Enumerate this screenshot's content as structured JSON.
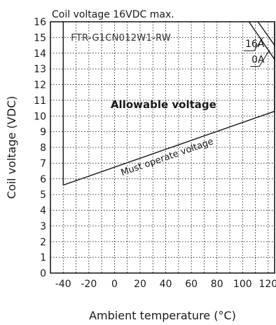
{
  "chart_data": {
    "type": "line",
    "title": "Coil voltage 16VDC max.",
    "model": "FTR-G1CN012W1-RW",
    "xlabel": "Ambient temperature (°C)",
    "ylabel": "Coil voltage (VDC)",
    "xlim": [
      -50,
      125
    ],
    "ylim": [
      0,
      16
    ],
    "x_ticks": [
      "-40",
      "-20",
      "0",
      "20",
      "40",
      "60",
      "80",
      "100",
      "120"
    ],
    "x_tick_values": [
      -40,
      -20,
      0,
      20,
      40,
      60,
      80,
      100,
      120
    ],
    "y_ticks": [
      "0",
      "1",
      "2",
      "3",
      "4",
      "5",
      "6",
      "7",
      "8",
      "9",
      "10",
      "11",
      "12",
      "13",
      "14",
      "15",
      "16"
    ],
    "y_tick_values": [
      0,
      1,
      2,
      3,
      4,
      5,
      6,
      7,
      8,
      9,
      10,
      11,
      12,
      13,
      14,
      15,
      16
    ],
    "grid": true,
    "region_label": "Allowable voltage",
    "series": [
      {
        "name": "Must operate voltage",
        "points": [
          [
            -40,
            5.6
          ],
          [
            125,
            10.3
          ]
        ]
      },
      {
        "name": "16A",
        "points": [
          [
            105,
            16
          ],
          [
            125,
            13.6
          ]
        ]
      },
      {
        "name": "0A",
        "points": [
          [
            112,
            16
          ],
          [
            125,
            14.5
          ]
        ]
      }
    ],
    "vertical_bounds": [
      {
        "x": -40,
        "y_from": 5.6,
        "y_to": 16
      },
      {
        "x": 125,
        "y_from": 10.3,
        "y_to": 16
      }
    ],
    "annotations": [
      {
        "text": "16A",
        "target": [
          116,
          15
        ]
      },
      {
        "text": "0A",
        "target": [
          121,
          14.2
        ]
      }
    ]
  }
}
